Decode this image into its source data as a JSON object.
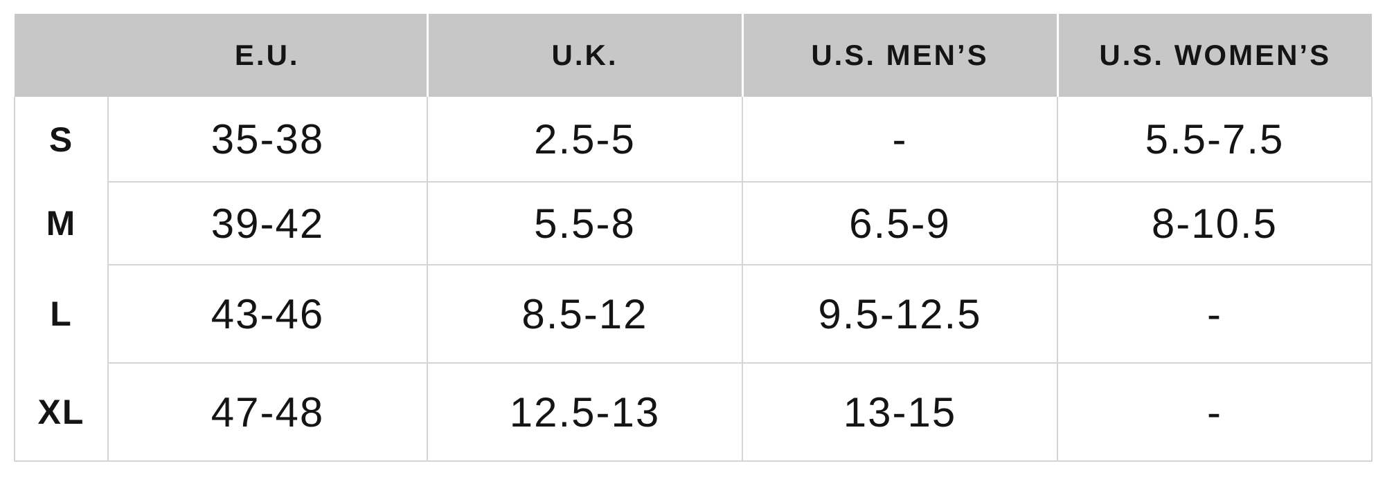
{
  "table": {
    "title": "size-conversion-table",
    "columns": [
      {
        "label": ""
      },
      {
        "label": "E.U."
      },
      {
        "label": "U.K."
      },
      {
        "label": "U.S. MEN’S"
      },
      {
        "label": "U.S. WOMEN’S"
      }
    ],
    "rows": [
      {
        "size": "S",
        "eu": "35-38",
        "uk": "2.5-5",
        "us_mens": "-",
        "us_womens": "5.5-7.5"
      },
      {
        "size": "M",
        "eu": "39-42",
        "uk": "5.5-8",
        "us_mens": "6.5-9",
        "us_womens": "8-10.5"
      },
      {
        "size": "L",
        "eu": "43-46",
        "uk": "8.5-12",
        "us_mens": "9.5-12.5",
        "us_womens": "-"
      },
      {
        "size": "XL",
        "eu": "47-48",
        "uk": "12.5-13",
        "us_mens": "13-15",
        "us_womens": "-"
      }
    ],
    "colors": {
      "header_bg": "#c7c7c7",
      "grid_line": "#d4d4d4",
      "header_divider": "#ffffff",
      "text": "#141414"
    }
  }
}
